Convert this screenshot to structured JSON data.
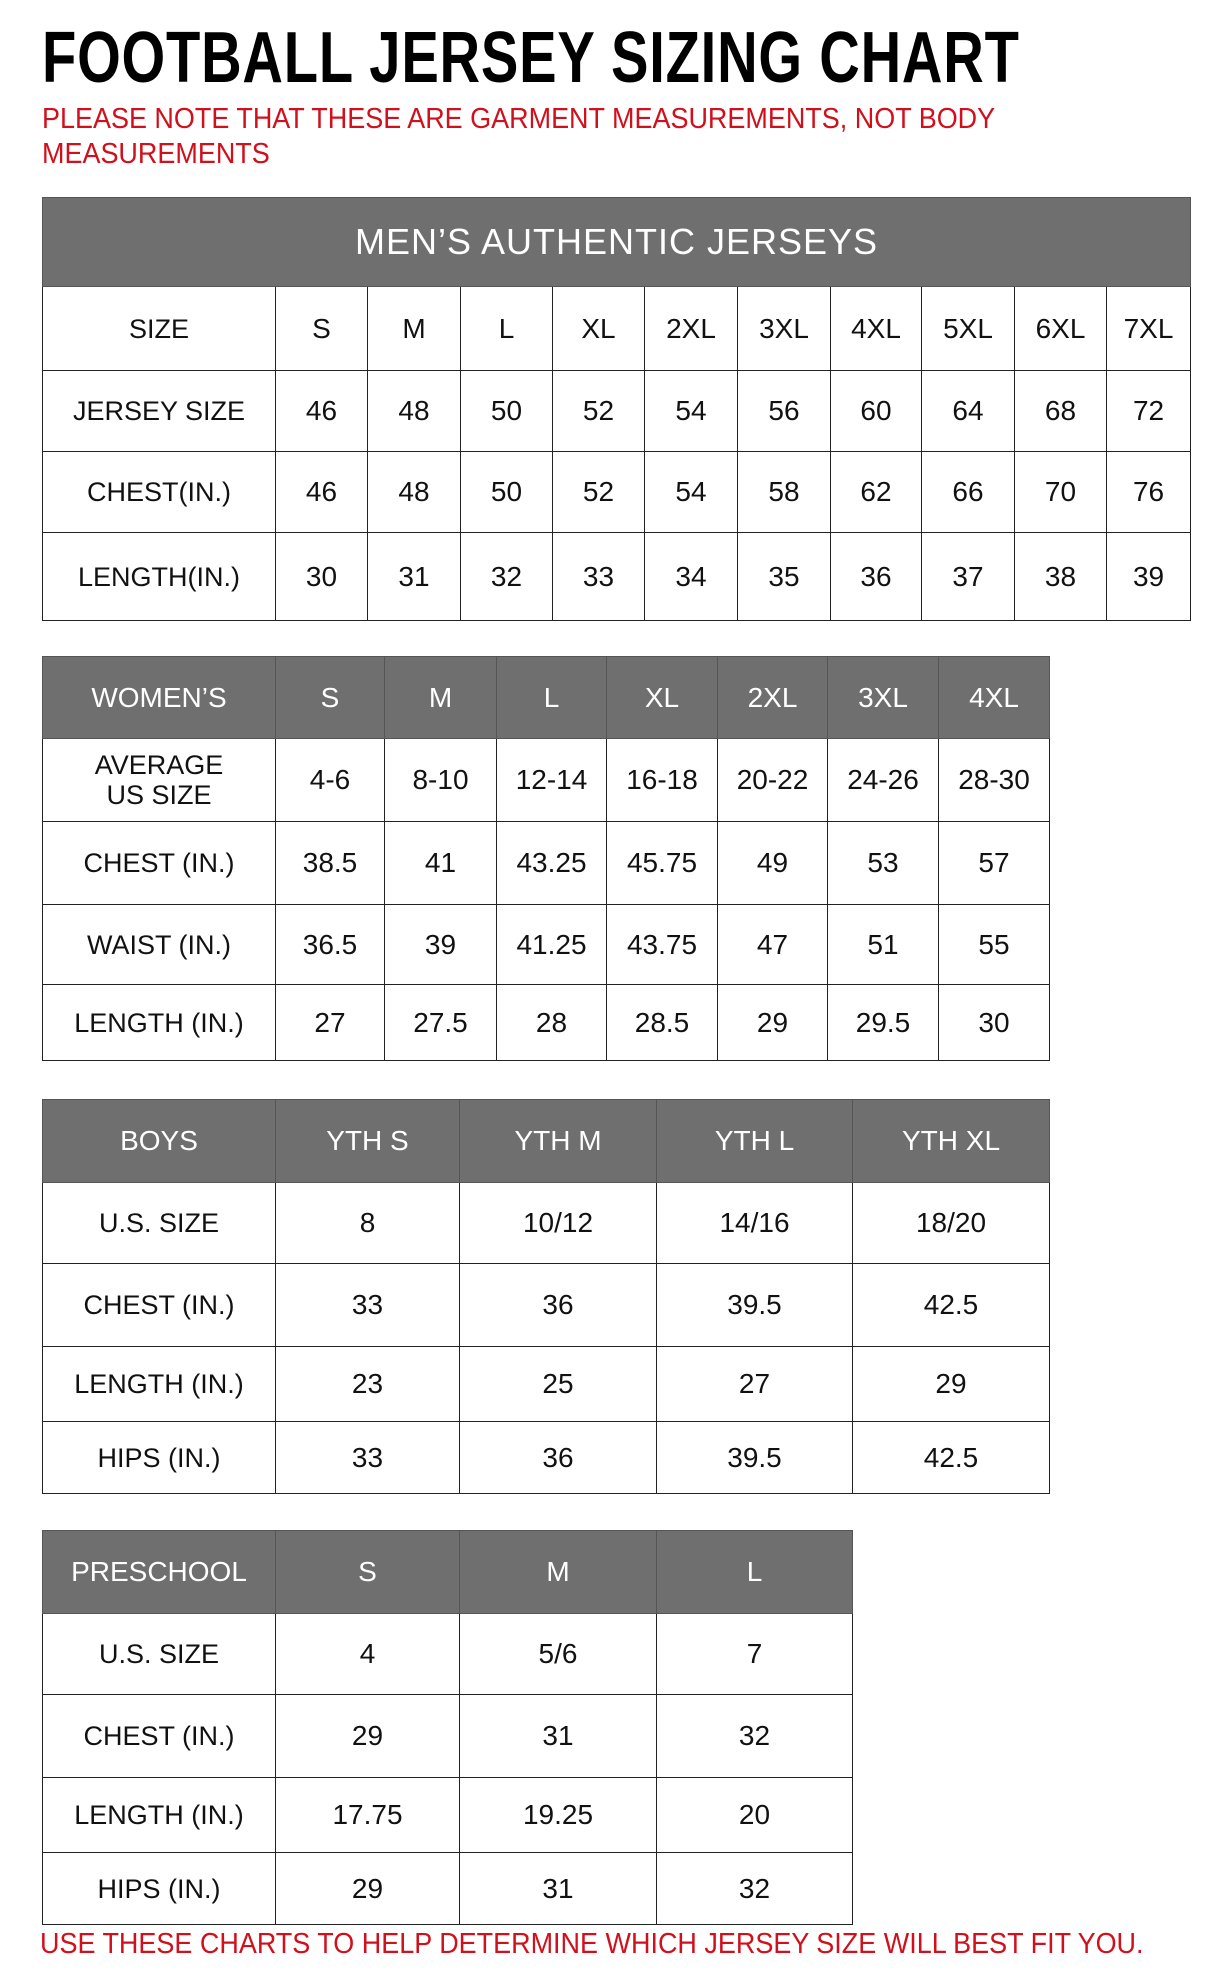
{
  "title": "FOOTBALL JERSEY SIZING CHART",
  "note": "PLEASE NOTE THAT THESE ARE GARMENT MEASUREMENTS, NOT BODY MEASUREMENTS",
  "footer": "USE THESE CHARTS TO HELP DETERMINE WHICH JERSEY SIZE WILL BEST FIT YOU.",
  "colors": {
    "header_bg": "#6f6f6f",
    "note_red": "#d0101c"
  },
  "mens": {
    "caption": "MEN’S AUTHENTIC JERSEYS",
    "rows": [
      [
        "SIZE",
        "S",
        "M",
        "L",
        "XL",
        "2XL",
        "3XL",
        "4XL",
        "5XL",
        "6XL",
        "7XL"
      ],
      [
        "JERSEY SIZE",
        "46",
        "48",
        "50",
        "52",
        "54",
        "56",
        "60",
        "64",
        "68",
        "72"
      ],
      [
        "CHEST(IN.)",
        "46",
        "48",
        "50",
        "52",
        "54",
        "58",
        "62",
        "66",
        "70",
        "76"
      ],
      [
        "LENGTH(IN.)",
        "30",
        "31",
        "32",
        "33",
        "34",
        "35",
        "36",
        "37",
        "38",
        "39"
      ]
    ]
  },
  "womens": {
    "header": [
      "WOMEN’S",
      "S",
      "M",
      "L",
      "XL",
      "2XL",
      "3XL",
      "4XL"
    ],
    "rows": [
      [
        "AVERAGE US SIZE",
        "4-6",
        "8-10",
        "12-14",
        "16-18",
        "20-22",
        "24-26",
        "28-30"
      ],
      [
        "CHEST (IN.)",
        "38.5",
        "41",
        "43.25",
        "45.75",
        "49",
        "53",
        "57"
      ],
      [
        "WAIST (IN.)",
        "36.5",
        "39",
        "41.25",
        "43.75",
        "47",
        "51",
        "55"
      ],
      [
        "LENGTH (IN.)",
        "27",
        "27.5",
        "28",
        "28.5",
        "29",
        "29.5",
        "30"
      ]
    ]
  },
  "boys": {
    "header": [
      "BOYS",
      "YTH S",
      "YTH M",
      "YTH L",
      "YTH XL"
    ],
    "rows": [
      [
        "U.S. SIZE",
        "8",
        "10/12",
        "14/16",
        "18/20"
      ],
      [
        "CHEST (IN.)",
        "33",
        "36",
        "39.5",
        "42.5"
      ],
      [
        "LENGTH (IN.)",
        "23",
        "25",
        "27",
        "29"
      ],
      [
        "HIPS (IN.)",
        "33",
        "36",
        "39.5",
        "42.5"
      ]
    ]
  },
  "preschool": {
    "header": [
      "PRESCHOOL",
      "S",
      "M",
      "L"
    ],
    "rows": [
      [
        "U.S. SIZE",
        "4",
        "5/6",
        "7"
      ],
      [
        "CHEST (IN.)",
        "29",
        "31",
        "32"
      ],
      [
        "LENGTH (IN.)",
        "17.75",
        "19.25",
        "20"
      ],
      [
        "HIPS (IN.)",
        "29",
        "31",
        "32"
      ]
    ]
  }
}
